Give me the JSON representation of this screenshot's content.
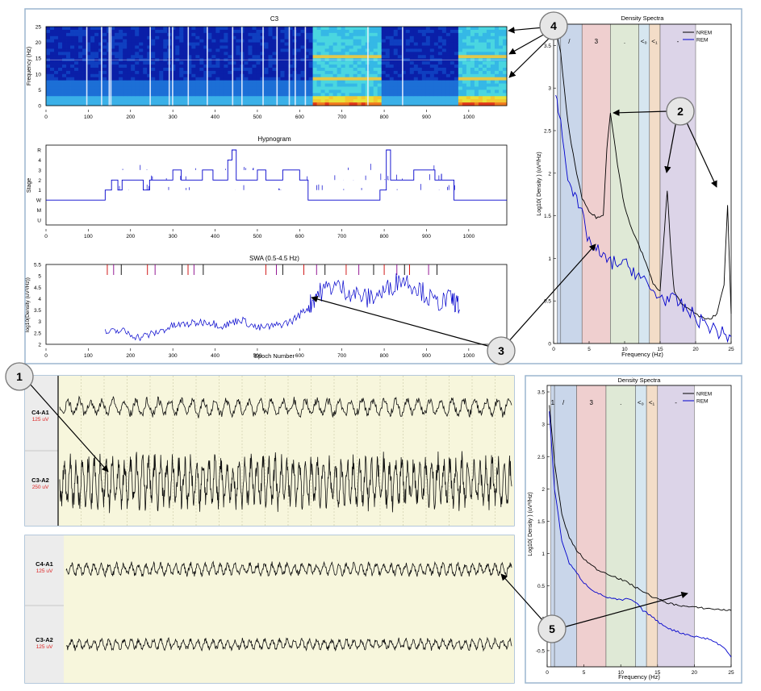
{
  "spectrogram": {
    "title": "C3",
    "ylabel": "Frequency (Hz)",
    "yticks": [
      "0",
      "5",
      "10",
      "15",
      "20",
      "25"
    ],
    "xticks": [
      "0",
      "100",
      "200",
      "300",
      "400",
      "500",
      "600",
      "700",
      "800",
      "900",
      "1000"
    ]
  },
  "hypnogram": {
    "title": "Hypnogram",
    "ylabel": "Stage",
    "stage_labels": [
      "R",
      "4",
      "3",
      "2",
      "1",
      "W",
      "M",
      "U"
    ],
    "xticks": [
      "0",
      "100",
      "200",
      "300",
      "400",
      "500",
      "600",
      "700",
      "800",
      "900",
      "1000"
    ]
  },
  "swa": {
    "title": "SWA (0.5-4.5 Hz)",
    "ylabel": "log10(Density (uV²/Hz))",
    "xlabel": "Epoch Number",
    "yticks": [
      "2",
      "2.5",
      "3",
      "3.5",
      "4",
      "4.5",
      "5",
      "5.5"
    ],
    "xticks": [
      "0",
      "100",
      "200",
      "300",
      "400",
      "500",
      "600",
      "700",
      "800",
      "900",
      "1000"
    ]
  },
  "spectra_top": {
    "title": "Density Spectra",
    "ylabel": "Log10( Density ) (uV²/Hz)",
    "xlabel": "Frequency (Hz)",
    "yticks": [
      "0",
      "0.5",
      "1",
      "1.5",
      "2",
      "2.5",
      "3",
      "3.5"
    ],
    "xticks": [
      "0",
      "5",
      "10",
      "15",
      "20",
      "25"
    ],
    "legend": [
      "NREM",
      "REM"
    ],
    "band_letters": [
      "/",
      "3",
      ".",
      "<₀",
      "<₁",
      "-"
    ]
  },
  "spectra_bottom": {
    "title": "Density Spectra",
    "ylabel": "Log10( Density ) (uV²/Hz)",
    "xlabel": "Frequency (Hz)",
    "yticks": [
      "-0.5",
      "0",
      "0.5",
      "1",
      "1.5",
      "2",
      "2.5",
      "3",
      "3.5"
    ],
    "xticks": [
      "0",
      "5",
      "10",
      "15",
      "20",
      "25"
    ],
    "legend": [
      "NREM",
      "REM"
    ],
    "band_letters": [
      "1",
      "/",
      "3",
      ".",
      "<₀",
      "<₁",
      "-"
    ]
  },
  "eeg_top": {
    "channels": [
      {
        "name": "C4-A1",
        "scale": "125 uV"
      },
      {
        "name": "C3-A2",
        "scale": "250 uV"
      }
    ]
  },
  "eeg_bottom": {
    "channels": [
      {
        "name": "C4-A1",
        "scale": "125 uV"
      },
      {
        "name": "C3-A2",
        "scale": "125 uV"
      }
    ]
  },
  "callouts": [
    "1",
    "2",
    "3",
    "4",
    "5"
  ],
  "colors": {
    "nrem": "#000000",
    "rem": "#0000cc",
    "eeg_bg": "#f7f6dc",
    "panel_border": "#9cb6cf",
    "band_blue": "#c9d6ea",
    "band_red": "#efcfcf",
    "band_green": "#dfe9d6",
    "band_lightblue": "#d6e6f0",
    "band_orange": "#f3ddc8",
    "band_purple": "#dcd4e8"
  },
  "chart_data": [
    {
      "type": "heatmap",
      "title": "C3",
      "xlabel": "",
      "ylabel": "Frequency (Hz)",
      "xlim": [
        0,
        1090
      ],
      "ylim": [
        0,
        25
      ]
    },
    {
      "type": "line",
      "title": "Hypnogram",
      "ylabel": "Stage",
      "xlim": [
        0,
        1090
      ],
      "categories_y": [
        "U",
        "M",
        "W",
        "1",
        "2",
        "3",
        "4",
        "R"
      ],
      "segments": [
        [
          0,
          "W"
        ],
        [
          140,
          "1"
        ],
        [
          155,
          "2"
        ],
        [
          170,
          "1"
        ],
        [
          180,
          "2"
        ],
        [
          230,
          "1"
        ],
        [
          245,
          "2"
        ],
        [
          300,
          "3"
        ],
        [
          320,
          "2"
        ],
        [
          370,
          "3"
        ],
        [
          395,
          "2"
        ],
        [
          430,
          "4"
        ],
        [
          440,
          "R"
        ],
        [
          450,
          "2"
        ],
        [
          500,
          "3"
        ],
        [
          520,
          "2"
        ],
        [
          560,
          "3"
        ],
        [
          600,
          "2"
        ],
        [
          620,
          "W"
        ],
        [
          790,
          "1"
        ],
        [
          805,
          "R"
        ],
        [
          815,
          "2"
        ],
        [
          870,
          "3"
        ],
        [
          920,
          "2"
        ],
        [
          965,
          "W"
        ],
        [
          1090,
          "W"
        ]
      ]
    },
    {
      "type": "line",
      "title": "SWA (0.5-4.5 Hz)",
      "xlabel": "Epoch Number",
      "ylabel": "log10(Density (uV²/Hz))",
      "xlim": [
        0,
        1090
      ],
      "ylim": [
        2,
        5.5
      ],
      "x": [
        140,
        180,
        220,
        260,
        300,
        340,
        380,
        420,
        460,
        500,
        540,
        580,
        620,
        640,
        680,
        720,
        760,
        800,
        840,
        880,
        920,
        960,
        980
      ],
      "y": [
        2.5,
        2.6,
        2.3,
        2.5,
        2.8,
        2.9,
        3.0,
        2.8,
        3.1,
        2.7,
        2.8,
        3.0,
        3.6,
        4.2,
        4.6,
        4.3,
        4.0,
        4.3,
        4.9,
        4.5,
        3.8,
        4.0,
        3.6
      ]
    },
    {
      "type": "line",
      "title": "Density Spectra",
      "xlabel": "Frequency (Hz)",
      "ylabel": "Log10( Density ) (uV²/Hz)",
      "xlim": [
        0,
        25
      ],
      "ylim": [
        0,
        3.75
      ],
      "series": [
        {
          "name": "NREM",
          "x": [
            0.3,
            1,
            2,
            3,
            4,
            5,
            6,
            7,
            7.5,
            8,
            9,
            10,
            11,
            12,
            13,
            14,
            15,
            15.5,
            16,
            16.5,
            17,
            18,
            19,
            20,
            21,
            22,
            23,
            24,
            24.5,
            25
          ],
          "y": [
            3.7,
            3.4,
            2.6,
            2.1,
            1.7,
            1.55,
            1.48,
            1.5,
            2.3,
            2.72,
            2.1,
            1.6,
            1.35,
            1.15,
            0.95,
            0.7,
            0.62,
            1.2,
            1.8,
            1.1,
            0.6,
            0.48,
            0.4,
            0.35,
            0.3,
            0.28,
            0.35,
            0.7,
            1.62,
            0.35
          ]
        },
        {
          "name": "REM",
          "x": [
            0.3,
            1,
            2,
            3,
            4,
            5,
            6,
            7,
            8,
            9,
            10,
            11,
            12,
            13,
            14,
            15,
            16,
            17,
            18,
            19,
            20,
            21,
            22,
            23,
            24,
            25
          ],
          "y": [
            2.9,
            2.6,
            2.0,
            1.7,
            1.5,
            1.2,
            1.1,
            1.0,
            0.95,
            0.95,
            0.92,
            0.88,
            0.8,
            0.7,
            0.6,
            0.55,
            0.52,
            0.5,
            0.45,
            0.38,
            0.3,
            0.25,
            0.2,
            0.15,
            0.1,
            0.08
          ]
        }
      ],
      "bands": [
        [
          0.5,
          1,
          "blue"
        ],
        [
          1,
          4,
          "blue"
        ],
        [
          4,
          8,
          "red"
        ],
        [
          8,
          12,
          "green"
        ],
        [
          12,
          13.5,
          "lightblue"
        ],
        [
          13.5,
          15,
          "orange"
        ],
        [
          15,
          20,
          "purple"
        ]
      ]
    },
    {
      "type": "line",
      "title": "Density Spectra",
      "xlabel": "Frequency (Hz)",
      "ylabel": "Log10( Density ) (uV²/Hz)",
      "xlim": [
        0,
        25
      ],
      "ylim": [
        -0.75,
        3.6
      ],
      "series": [
        {
          "name": "NREM",
          "x": [
            0.3,
            1,
            2,
            3,
            4,
            5,
            6,
            7,
            8,
            9,
            10,
            11,
            12,
            13,
            14,
            15,
            16,
            17,
            18,
            19,
            20,
            21,
            22,
            23,
            24,
            25
          ],
          "y": [
            3.3,
            2.4,
            1.6,
            1.25,
            1.05,
            0.92,
            0.82,
            0.74,
            0.7,
            0.65,
            0.6,
            0.55,
            0.48,
            0.42,
            0.35,
            0.3,
            0.25,
            0.22,
            0.2,
            0.18,
            0.17,
            0.16,
            0.15,
            0.14,
            0.13,
            0.12
          ]
        },
        {
          "name": "REM",
          "x": [
            0.3,
            1,
            2,
            3,
            4,
            5,
            6,
            7,
            8,
            9,
            10,
            11,
            12,
            13,
            14,
            15,
            16,
            17,
            18,
            19,
            20,
            21,
            22,
            23,
            24,
            25
          ],
          "y": [
            3.2,
            2.0,
            1.2,
            0.85,
            0.7,
            0.55,
            0.45,
            0.38,
            0.33,
            0.3,
            0.28,
            0.3,
            0.25,
            0.12,
            0.05,
            -0.05,
            -0.12,
            -0.18,
            -0.22,
            -0.25,
            -0.28,
            -0.3,
            -0.32,
            -0.38,
            -0.45,
            -0.6
          ]
        }
      ],
      "bands": [
        [
          0.5,
          1,
          "blue"
        ],
        [
          1,
          4,
          "blue"
        ],
        [
          4,
          8,
          "red"
        ],
        [
          8,
          12,
          "green"
        ],
        [
          12,
          13.5,
          "lightblue"
        ],
        [
          13.5,
          15,
          "orange"
        ],
        [
          15,
          20,
          "purple"
        ]
      ]
    }
  ]
}
